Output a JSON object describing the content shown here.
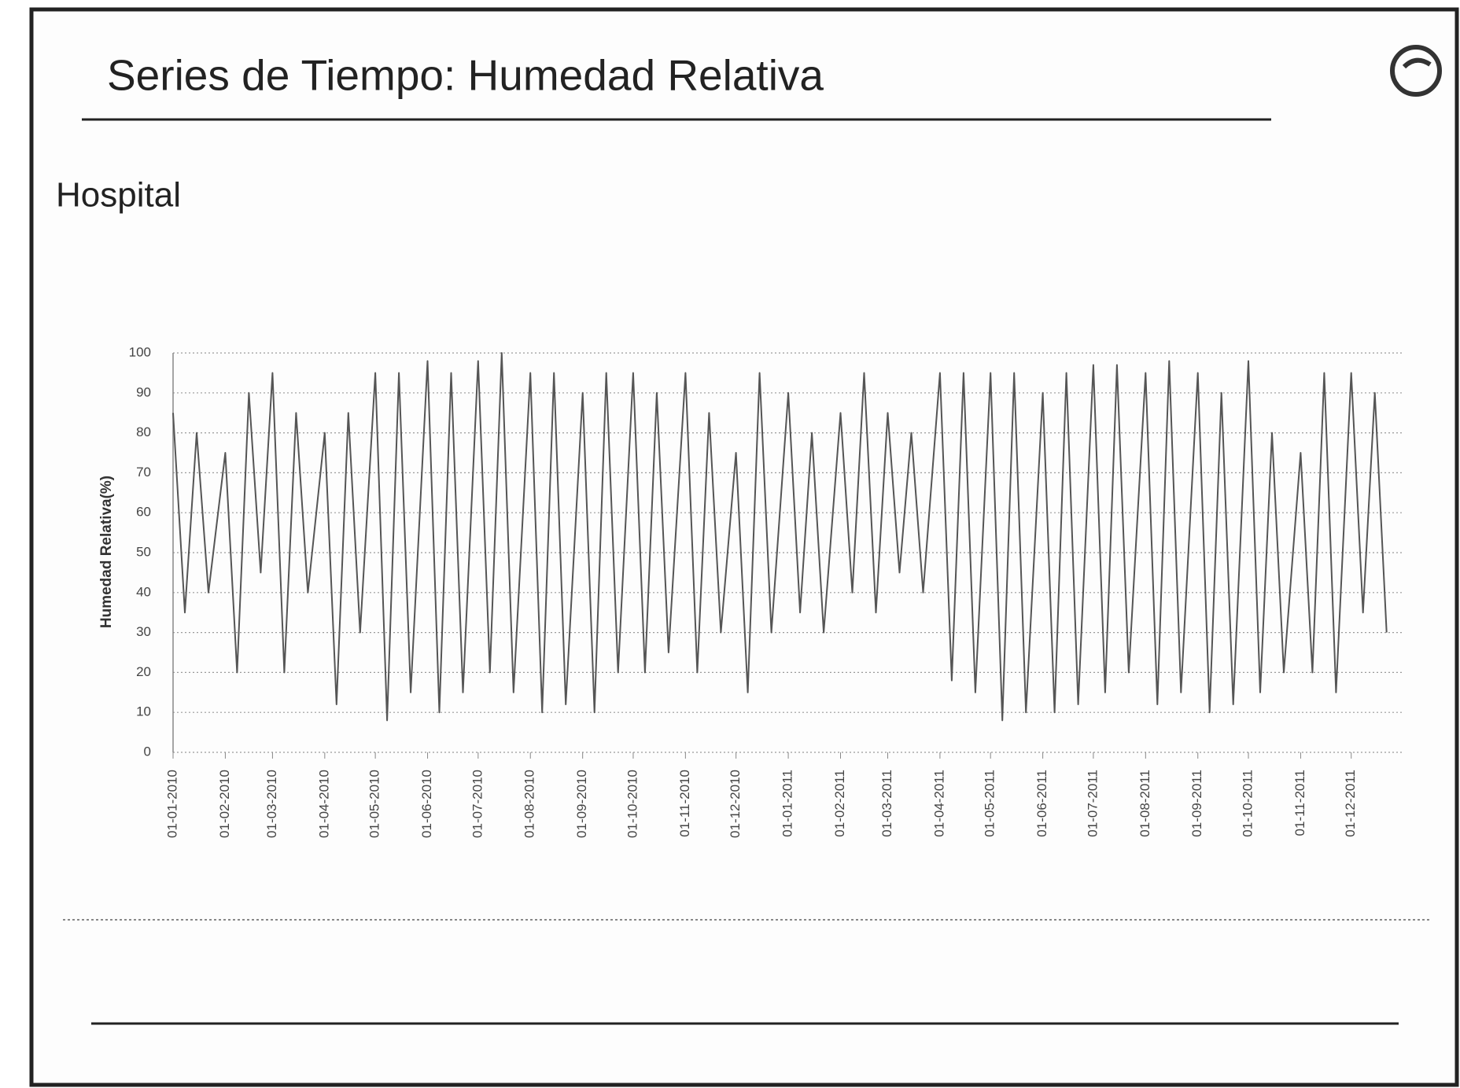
{
  "header": {
    "title": "Series de Tiempo: Humedad Relativa",
    "subtitle": "Hospital"
  },
  "chart_data": {
    "type": "line",
    "y_label": "Humedad Relativa(%)",
    "x": [
      "2010-01-01",
      "2010-01-08",
      "2010-01-15",
      "2010-01-22",
      "2010-02-01",
      "2010-02-08",
      "2010-02-15",
      "2010-02-22",
      "2010-03-01",
      "2010-03-08",
      "2010-03-15",
      "2010-03-22",
      "2010-04-01",
      "2010-04-08",
      "2010-04-15",
      "2010-04-22",
      "2010-05-01",
      "2010-05-08",
      "2010-05-15",
      "2010-05-22",
      "2010-06-01",
      "2010-06-08",
      "2010-06-15",
      "2010-06-22",
      "2010-07-01",
      "2010-07-08",
      "2010-07-15",
      "2010-07-22",
      "2010-08-01",
      "2010-08-08",
      "2010-08-15",
      "2010-08-22",
      "2010-09-01",
      "2010-09-08",
      "2010-09-15",
      "2010-09-22",
      "2010-10-01",
      "2010-10-08",
      "2010-10-15",
      "2010-10-22",
      "2010-11-01",
      "2010-11-08",
      "2010-11-15",
      "2010-11-22",
      "2010-12-01",
      "2010-12-08",
      "2010-12-15",
      "2010-12-22",
      "2011-01-01",
      "2011-01-08",
      "2011-01-15",
      "2011-01-22",
      "2011-02-01",
      "2011-02-08",
      "2011-02-15",
      "2011-02-22",
      "2011-03-01",
      "2011-03-08",
      "2011-03-15",
      "2011-03-22",
      "2011-04-01",
      "2011-04-08",
      "2011-04-15",
      "2011-04-22",
      "2011-05-01",
      "2011-05-08",
      "2011-05-15",
      "2011-05-22",
      "2011-06-01",
      "2011-06-08",
      "2011-06-15",
      "2011-06-22",
      "2011-07-01",
      "2011-07-08",
      "2011-07-15",
      "2011-07-22",
      "2011-08-01",
      "2011-08-08",
      "2011-08-15",
      "2011-08-22",
      "2011-09-01",
      "2011-09-08",
      "2011-09-15",
      "2011-09-22",
      "2011-10-01",
      "2011-10-08",
      "2011-10-15",
      "2011-10-22",
      "2011-11-01",
      "2011-11-08",
      "2011-11-15",
      "2011-11-22",
      "2011-12-01",
      "2011-12-08",
      "2011-12-15",
      "2011-12-22"
    ],
    "series": [
      {
        "name": "Humedad Relativa",
        "color": "#555555",
        "values": [
          85,
          35,
          80,
          40,
          75,
          20,
          90,
          45,
          95,
          20,
          85,
          40,
          80,
          12,
          85,
          30,
          95,
          8,
          95,
          15,
          98,
          10,
          95,
          15,
          98,
          20,
          100,
          15,
          95,
          10,
          95,
          12,
          90,
          10,
          95,
          20,
          95,
          20,
          90,
          25,
          95,
          20,
          85,
          30,
          75,
          15,
          95,
          30,
          90,
          35,
          80,
          30,
          85,
          40,
          95,
          35,
          85,
          45,
          80,
          40,
          95,
          18,
          95,
          15,
          95,
          8,
          95,
          10,
          90,
          10,
          95,
          12,
          97,
          15,
          97,
          20,
          95,
          12,
          98,
          15,
          95,
          10,
          90,
          12,
          98,
          15,
          80,
          20,
          75,
          20,
          95,
          15,
          95,
          35,
          90,
          30
        ]
      }
    ],
    "xlim": [
      "2010-01-01",
      "2011-12-31"
    ],
    "xticks": [
      {
        "value": "2010-01-01",
        "label": "01-01-2010"
      },
      {
        "value": "2010-02-01",
        "label": "01-02-2010"
      },
      {
        "value": "2010-03-01",
        "label": "01-03-2010"
      },
      {
        "value": "2010-04-01",
        "label": "01-04-2010"
      },
      {
        "value": "2010-05-01",
        "label": "01-05-2010"
      },
      {
        "value": "2010-06-01",
        "label": "01-06-2010"
      },
      {
        "value": "2010-07-01",
        "label": "01-07-2010"
      },
      {
        "value": "2010-08-01",
        "label": "01-08-2010"
      },
      {
        "value": "2010-09-01",
        "label": "01-09-2010"
      },
      {
        "value": "2010-10-01",
        "label": "01-10-2010"
      },
      {
        "value": "2010-11-01",
        "label": "01-11-2010"
      },
      {
        "value": "2010-12-01",
        "label": "01-12-2010"
      },
      {
        "value": "2011-01-01",
        "label": "01-01-2011"
      },
      {
        "value": "2011-02-01",
        "label": "01-02-2011"
      },
      {
        "value": "2011-03-01",
        "label": "01-03-2011"
      },
      {
        "value": "2011-04-01",
        "label": "01-04-2011"
      },
      {
        "value": "2011-05-01",
        "label": "01-05-2011"
      },
      {
        "value": "2011-06-01",
        "label": "01-06-2011"
      },
      {
        "value": "2011-07-01",
        "label": "01-07-2011"
      },
      {
        "value": "2011-08-01",
        "label": "01-08-2011"
      },
      {
        "value": "2011-09-01",
        "label": "01-09-2011"
      },
      {
        "value": "2011-10-01",
        "label": "01-10-2011"
      },
      {
        "value": "2011-11-01",
        "label": "01-11-2011"
      },
      {
        "value": "2011-12-01",
        "label": "01-12-2011"
      }
    ],
    "ylim": [
      0,
      100
    ],
    "yticks": [
      0,
      10,
      20,
      30,
      40,
      50,
      60,
      70,
      80,
      90,
      100
    ],
    "grid": true
  }
}
